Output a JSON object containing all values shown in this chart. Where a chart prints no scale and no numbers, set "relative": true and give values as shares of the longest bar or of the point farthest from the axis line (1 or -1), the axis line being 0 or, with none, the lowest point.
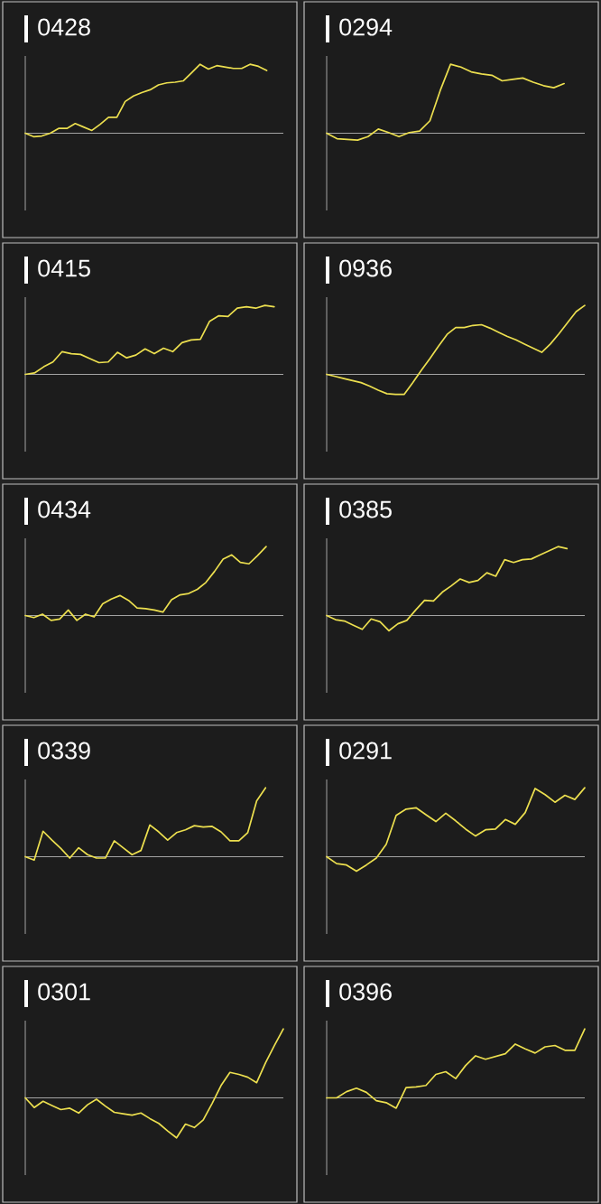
{
  "chart_data": [
    {
      "type": "line",
      "title": "0428",
      "relative": true,
      "color": "#ecdf4f",
      "categories": [
        null,
        null,
        null,
        null,
        null,
        null,
        null,
        null,
        null,
        null,
        null,
        null,
        null,
        null,
        null,
        null,
        null,
        null,
        null,
        null,
        null,
        null,
        null,
        null,
        null,
        null,
        null,
        null,
        null,
        null,
        null,
        null
      ],
      "values": [
        0,
        -0.05,
        -0.04,
        0,
        0.07,
        0.07,
        0.14,
        0.09,
        0.04,
        0.13,
        0.23,
        0.23,
        0.46,
        0.54,
        0.59,
        0.63,
        0.7,
        0.73,
        0.74,
        0.76,
        0.88,
        1.0,
        0.93,
        0.98,
        0.96,
        0.94,
        0.94,
        1.0,
        0.97,
        0.91,
        null,
        null
      ]
    },
    {
      "type": "line",
      "title": "0294",
      "relative": true,
      "color": "#ecdf4f",
      "categories": [
        null,
        null,
        null,
        null,
        null,
        null,
        null,
        null,
        null,
        null,
        null,
        null,
        null,
        null,
        null,
        null,
        null,
        null,
        null,
        null,
        null,
        null,
        null,
        null,
        null,
        null
      ],
      "values": [
        0,
        -0.08,
        -0.09,
        -0.1,
        -0.05,
        0.06,
        0.01,
        -0.05,
        0.01,
        0.03,
        0.18,
        0.62,
        1.0,
        0.96,
        0.89,
        0.86,
        0.84,
        0.76,
        0.78,
        0.8,
        0.74,
        0.69,
        0.66,
        0.72,
        null,
        null
      ]
    },
    {
      "type": "line",
      "title": "0415",
      "relative": true,
      "color": "#ecdf4f",
      "categories": [
        null,
        null,
        null,
        null,
        null,
        null,
        null,
        null,
        null,
        null,
        null,
        null,
        null,
        null,
        null,
        null,
        null,
        null,
        null,
        null,
        null,
        null,
        null,
        null,
        null,
        null,
        null,
        null,
        null
      ],
      "values": [
        0,
        0.02,
        0.11,
        0.18,
        0.33,
        0.3,
        0.29,
        0.23,
        0.17,
        0.18,
        0.32,
        0.24,
        0.28,
        0.37,
        0.3,
        0.38,
        0.33,
        0.46,
        0.5,
        0.51,
        0.77,
        0.85,
        0.84,
        0.96,
        0.98,
        0.96,
        1.0,
        0.98,
        null
      ]
    },
    {
      "type": "line",
      "title": "0936",
      "relative": true,
      "color": "#ecdf4f",
      "categories": [
        null,
        null,
        null,
        null,
        null,
        null,
        null,
        null,
        null,
        null,
        null,
        null,
        null,
        null,
        null,
        null,
        null,
        null,
        null,
        null,
        null,
        null,
        null,
        null,
        null,
        null,
        null,
        null,
        null,
        null,
        null
      ],
      "values": [
        0,
        -0.03,
        -0.06,
        -0.09,
        -0.12,
        -0.17,
        -0.23,
        -0.28,
        -0.29,
        -0.29,
        -0.12,
        0.06,
        0.23,
        0.41,
        0.58,
        0.68,
        0.68,
        0.71,
        0.72,
        0.67,
        0.61,
        0.55,
        0.5,
        0.44,
        0.38,
        0.32,
        0.44,
        0.59,
        0.75,
        0.91,
        1.0
      ]
    },
    {
      "type": "line",
      "title": "0434",
      "relative": true,
      "color": "#ecdf4f",
      "categories": [
        null,
        null,
        null,
        null,
        null,
        null,
        null,
        null,
        null,
        null,
        null,
        null,
        null,
        null,
        null,
        null,
        null,
        null,
        null,
        null,
        null,
        null,
        null,
        null,
        null,
        null,
        null,
        null,
        null,
        null,
        null
      ],
      "values": [
        0,
        -0.03,
        0.02,
        -0.07,
        -0.05,
        0.08,
        -0.07,
        0.02,
        -0.02,
        0.17,
        0.24,
        0.29,
        0.22,
        0.11,
        0.1,
        0.08,
        0.05,
        0.23,
        0.3,
        0.32,
        0.38,
        0.48,
        0.64,
        0.82,
        0.88,
        0.77,
        0.75,
        0.87,
        1.0,
        null,
        null
      ]
    },
    {
      "type": "line",
      "title": "0385",
      "relative": true,
      "color": "#ecdf4f",
      "categories": [
        null,
        null,
        null,
        null,
        null,
        null,
        null,
        null,
        null,
        null,
        null,
        null,
        null,
        null,
        null,
        null,
        null,
        null,
        null,
        null,
        null,
        null,
        null,
        null,
        null,
        null,
        null,
        null,
        null,
        null
      ],
      "values": [
        0,
        -0.06,
        -0.08,
        -0.14,
        -0.2,
        -0.05,
        -0.09,
        -0.22,
        -0.12,
        -0.07,
        0.08,
        0.22,
        0.21,
        0.34,
        0.43,
        0.53,
        0.48,
        0.51,
        0.62,
        0.57,
        0.81,
        0.77,
        0.81,
        0.82,
        0.88,
        0.94,
        1.0,
        0.97,
        null,
        null
      ]
    },
    {
      "type": "line",
      "title": "0339",
      "relative": true,
      "color": "#ecdf4f",
      "categories": [
        null,
        null,
        null,
        null,
        null,
        null,
        null,
        null,
        null,
        null,
        null,
        null,
        null,
        null,
        null,
        null,
        null,
        null,
        null,
        null,
        null,
        null,
        null,
        null,
        null,
        null,
        null,
        null,
        null,
        null
      ],
      "values": [
        0,
        -0.05,
        0.37,
        0.24,
        0.12,
        -0.02,
        0.13,
        0.03,
        -0.02,
        -0.02,
        0.23,
        0.13,
        0.03,
        0.09,
        0.46,
        0.36,
        0.24,
        0.35,
        0.39,
        0.45,
        0.43,
        0.44,
        0.36,
        0.23,
        0.23,
        0.35,
        0.81,
        1.0,
        null,
        null
      ]
    },
    {
      "type": "line",
      "title": "0291",
      "relative": true,
      "color": "#ecdf4f",
      "categories": [
        null,
        null,
        null,
        null,
        null,
        null,
        null,
        null,
        null,
        null,
        null,
        null,
        null,
        null,
        null,
        null,
        null,
        null,
        null,
        null,
        null,
        null,
        null,
        null,
        null,
        null,
        null
      ],
      "values": [
        0,
        -0.1,
        -0.12,
        -0.21,
        -0.12,
        -0.02,
        0.18,
        0.6,
        0.69,
        0.71,
        0.61,
        0.51,
        0.63,
        0.52,
        0.4,
        0.3,
        0.39,
        0.4,
        0.54,
        0.47,
        0.64,
        0.99,
        0.9,
        0.79,
        0.89,
        0.83,
        1.0
      ]
    },
    {
      "type": "line",
      "title": "0301",
      "relative": true,
      "color": "#ecdf4f",
      "categories": [
        null,
        null,
        null,
        null,
        null,
        null,
        null,
        null,
        null,
        null,
        null,
        null,
        null,
        null,
        null,
        null,
        null,
        null,
        null,
        null,
        null,
        null,
        null,
        null,
        null,
        null,
        null,
        null,
        null,
        null
      ],
      "values": [
        0,
        -0.14,
        -0.05,
        -0.11,
        -0.17,
        -0.15,
        -0.22,
        -0.1,
        -0.02,
        -0.12,
        -0.21,
        -0.23,
        -0.25,
        -0.22,
        -0.3,
        -0.37,
        -0.48,
        -0.58,
        -0.38,
        -0.43,
        -0.32,
        -0.08,
        0.18,
        0.37,
        0.34,
        0.3,
        0.22,
        0.51,
        0.76,
        1.0
      ]
    },
    {
      "type": "line",
      "title": "0396",
      "relative": true,
      "color": "#ecdf4f",
      "categories": [
        null,
        null,
        null,
        null,
        null,
        null,
        null,
        null,
        null,
        null,
        null,
        null,
        null,
        null,
        null,
        null,
        null,
        null,
        null,
        null,
        null,
        null,
        null,
        null,
        null,
        null,
        null
      ],
      "values": [
        0,
        0,
        0.09,
        0.14,
        0.08,
        -0.04,
        -0.07,
        -0.15,
        0.15,
        0.16,
        0.18,
        0.34,
        0.38,
        0.28,
        0.47,
        0.61,
        0.56,
        0.6,
        0.64,
        0.78,
        0.71,
        0.65,
        0.74,
        0.76,
        0.69,
        0.69,
        1.0
      ]
    }
  ]
}
